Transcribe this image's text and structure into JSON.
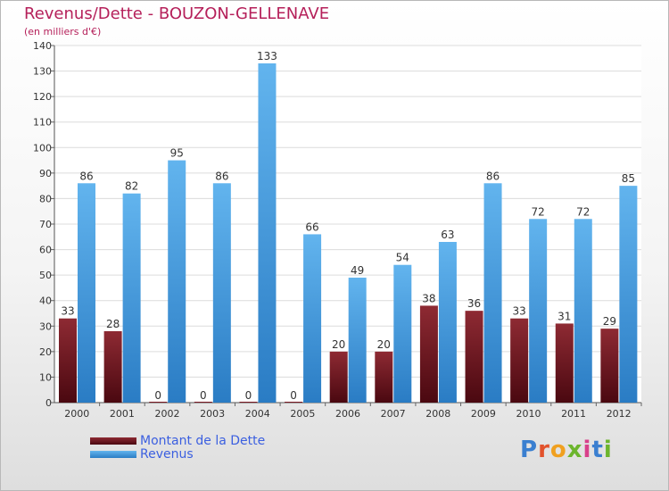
{
  "chart_data": {
    "type": "bar",
    "title": "Revenus/Dette - BOUZON-GELLENAVE",
    "subtitle": "(en milliers d'€)",
    "xlabel": "",
    "ylabel": "",
    "ylim": [
      0,
      140
    ],
    "yticks": [
      0,
      10,
      20,
      30,
      40,
      50,
      60,
      70,
      80,
      90,
      100,
      110,
      120,
      130,
      140
    ],
    "grid": true,
    "legend_position": "bottom-left",
    "categories": [
      "2000",
      "2001",
      "2002",
      "2003",
      "2004",
      "2005",
      "2006",
      "2007",
      "2008",
      "2009",
      "2010",
      "2011",
      "2012"
    ],
    "series": [
      {
        "name": "Montant de la Dette",
        "color": "#7a1a24",
        "values": [
          33,
          28,
          0,
          0,
          0,
          0,
          20,
          20,
          38,
          36,
          33,
          31,
          29
        ]
      },
      {
        "name": "Revenus",
        "color": "#4da6e8",
        "values": [
          86,
          82,
          95,
          86,
          133,
          66,
          49,
          54,
          63,
          86,
          72,
          72,
          85
        ]
      }
    ]
  },
  "logo": {
    "letters": [
      {
        "ch": "P",
        "color": "#3a7fd0"
      },
      {
        "ch": "r",
        "color": "#e2522c"
      },
      {
        "ch": "o",
        "color": "#f0a020"
      },
      {
        "ch": "x",
        "color": "#6cb52d"
      },
      {
        "ch": "i",
        "color": "#d8408a"
      },
      {
        "ch": "t",
        "color": "#3a7fd0"
      },
      {
        "ch": "i",
        "color": "#6cb52d"
      }
    ]
  }
}
